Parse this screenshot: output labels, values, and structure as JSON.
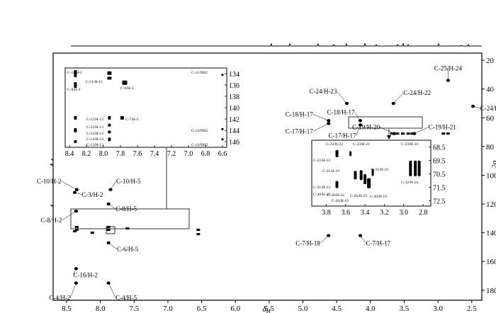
{
  "chart_data": {
    "type": "scatter",
    "xlabel": "δH",
    "ylabel": "δC",
    "xlim": [
      8.7,
      2.35
    ],
    "ylim": [
      15,
      187
    ],
    "grid": false,
    "x_ticks": [
      "8.5",
      "8.0",
      "7.5",
      "7.0",
      "6.5",
      "6.0",
      "5.5",
      "5.0",
      "4.5",
      "4.0",
      "3.5",
      "3.0",
      "2.5"
    ],
    "y_ticks": [
      "20",
      "40",
      "60",
      "80",
      "100",
      "120",
      "140",
      "160",
      "180"
    ],
    "correlations": [
      {
        "label": "C-10/H-2",
        "x": 8.35,
        "y": 110
      },
      {
        "label": "C-10/H-5",
        "x": 7.85,
        "y": 110
      },
      {
        "label": "C-3/H-2",
        "x": 8.38,
        "y": 112
      },
      {
        "label": "C-8/H-2",
        "x": 8.36,
        "y": 125
      },
      {
        "label": "C-8/H-5",
        "x": 7.88,
        "y": 120
      },
      {
        "label": "C-6/H-5",
        "x": 7.88,
        "y": 147
      },
      {
        "label": "C-16/H-2",
        "x": 8.36,
        "y": 165
      },
      {
        "label": "C-4/H-2",
        "x": 8.36,
        "y": 175
      },
      {
        "label": "C-4/H-5",
        "x": 7.88,
        "y": 175
      },
      {
        "label": "C-25/H-24",
        "x": 2.85,
        "y": 34
      },
      {
        "label": "C-24/H-25",
        "x": 2.48,
        "y": 52
      },
      {
        "label": "C-24/H-23",
        "x": 4.35,
        "y": 50
      },
      {
        "label": "C-24/H-22",
        "x": 3.66,
        "y": 50
      },
      {
        "label": "C-18/H-17",
        "x": 4.62,
        "y": 62
      },
      {
        "label": "C-17/H-17",
        "x": 4.62,
        "y": 64
      },
      {
        "label": "C-18/H-17",
        "x": 4.15,
        "y": 62
      },
      {
        "label": "C-17/H-17",
        "x": 4.15,
        "y": 65
      },
      {
        "label": "C-19/H-20",
        "x": 3.65,
        "y": 71
      },
      {
        "label": "C-19/H-21",
        "x": 3.35,
        "y": 71
      },
      {
        "label": "C-7/H-18",
        "x": 4.62,
        "y": 142
      },
      {
        "label": "C-7/H-17",
        "x": 4.15,
        "y": 142
      }
    ],
    "inset_aromatic": {
      "x_ticks": [
        "8.4",
        "8.2",
        "8.0",
        "7.8",
        "7.6",
        "7.4",
        "7.2",
        "7.0",
        "6.8",
        "6.6"
      ],
      "y_ticks": [
        "134",
        "136",
        "138",
        "140",
        "142",
        "144",
        "146"
      ],
      "labels": [
        "C-11/H-2",
        "C-9/H-2",
        "C-11/H-13",
        "C-9/H-5",
        "C-11/NH2",
        "C-12/H-13",
        "C-7/H-5",
        "C-12/H-13",
        "C-14/H-13",
        "C-14/H-13",
        "C-13/H-13",
        "C-14/NH2",
        "C-14/NH2"
      ]
    },
    "inset_aliphatic": {
      "x_ticks": [
        "3.8",
        "3.6",
        "3.4",
        "3.2",
        "3.0",
        "2.8"
      ],
      "y_ticks": [
        "68.5",
        "69.5",
        "70.5",
        "71.5",
        "72.5"
      ],
      "labels": [
        "C-23/H-22",
        "C-23/H-21",
        "C-22/H-23",
        "C-21/H-23",
        "C-21/H-19",
        "C-21/H-19",
        "C-20/H-23",
        "C-20/H-22",
        "C-26/H-23",
        "C-20/H-19",
        "C-20/H-19",
        "C-23/H-24",
        "C-22/H-24"
      ]
    }
  }
}
